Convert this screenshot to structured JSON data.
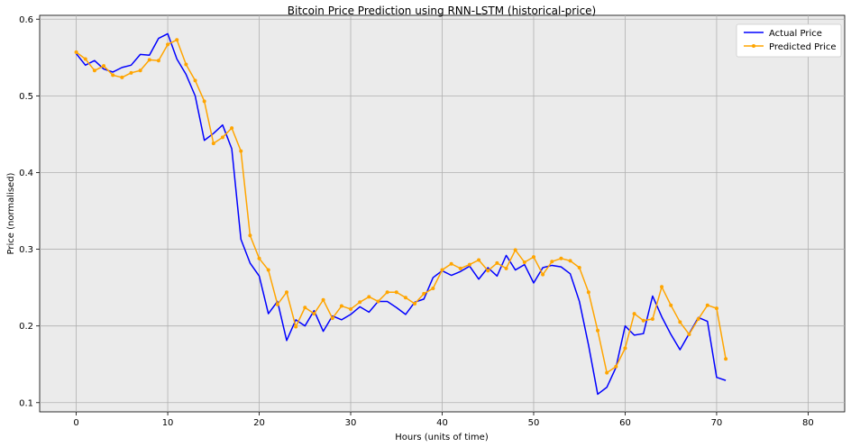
{
  "chart_data": {
    "type": "line",
    "title": "Bitcoin Price Prediction using RNN-LSTM (historical-price)",
    "xlabel": "Hours (units of time)",
    "ylabel": "Price (normalised)",
    "xlim": [
      -4,
      84
    ],
    "ylim": [
      0.088,
      0.605
    ],
    "xticks": [
      0,
      10,
      20,
      30,
      40,
      50,
      60,
      70,
      80
    ],
    "yticks": [
      0.1,
      0.2,
      0.3,
      0.4,
      0.5,
      0.6
    ],
    "grid": true,
    "legend_position": "top-right",
    "background": "#ebebeb",
    "series": [
      {
        "name": "Actual Price",
        "color": "#0000ff",
        "marker": "none",
        "values": [
          0.555,
          0.54,
          0.546,
          0.535,
          0.531,
          0.537,
          0.54,
          0.554,
          0.553,
          0.575,
          0.581,
          0.548,
          0.528,
          0.5,
          0.442,
          0.451,
          0.462,
          0.431,
          0.313,
          0.282,
          0.265,
          0.216,
          0.232,
          0.181,
          0.208,
          0.2,
          0.22,
          0.193,
          0.213,
          0.208,
          0.215,
          0.225,
          0.218,
          0.232,
          0.232,
          0.224,
          0.215,
          0.231,
          0.235,
          0.263,
          0.272,
          0.266,
          0.271,
          0.278,
          0.261,
          0.276,
          0.265,
          0.292,
          0.273,
          0.28,
          0.256,
          0.276,
          0.279,
          0.277,
          0.268,
          0.232,
          0.175,
          0.111,
          0.12,
          0.146,
          0.2,
          0.188,
          0.19,
          0.239,
          0.212,
          0.189,
          0.169,
          0.19,
          0.211,
          0.206,
          0.133,
          0.129
        ]
      },
      {
        "name": "Predicted Price",
        "color": "#ffa500",
        "marker": "dot",
        "values": [
          0.557,
          0.548,
          0.533,
          0.539,
          0.527,
          0.524,
          0.53,
          0.533,
          0.547,
          0.546,
          0.567,
          0.573,
          0.541,
          0.52,
          0.493,
          0.438,
          0.446,
          0.458,
          0.428,
          0.318,
          0.288,
          0.273,
          0.228,
          0.244,
          0.199,
          0.224,
          0.216,
          0.234,
          0.21,
          0.226,
          0.222,
          0.231,
          0.238,
          0.232,
          0.244,
          0.244,
          0.237,
          0.229,
          0.242,
          0.249,
          0.273,
          0.281,
          0.275,
          0.28,
          0.286,
          0.272,
          0.282,
          0.275,
          0.299,
          0.283,
          0.29,
          0.267,
          0.284,
          0.288,
          0.285,
          0.276,
          0.244,
          0.194,
          0.139,
          0.147,
          0.171,
          0.216,
          0.207,
          0.209,
          0.251,
          0.227,
          0.205,
          0.189,
          0.209,
          0.227,
          0.223,
          0.157
        ]
      }
    ]
  }
}
